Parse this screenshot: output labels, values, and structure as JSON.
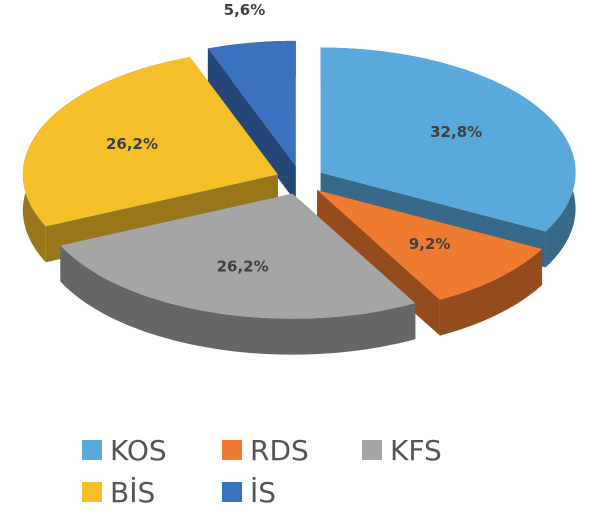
{
  "chart_data": {
    "type": "pie",
    "categories": [
      "KOS",
      "RDS",
      "KFS",
      "BİS",
      "İS"
    ],
    "values": [
      32.8,
      9.2,
      26.2,
      26.2,
      5.6
    ],
    "value_labels": [
      "32,8%",
      "9,2%",
      "26,2%",
      "26,2%",
      "5,6%"
    ],
    "colors": [
      "#5aa9dc",
      "#ee7b30",
      "#a5a5a5",
      "#f5bf2a",
      "#3b72c0"
    ],
    "legend": "bottom"
  }
}
